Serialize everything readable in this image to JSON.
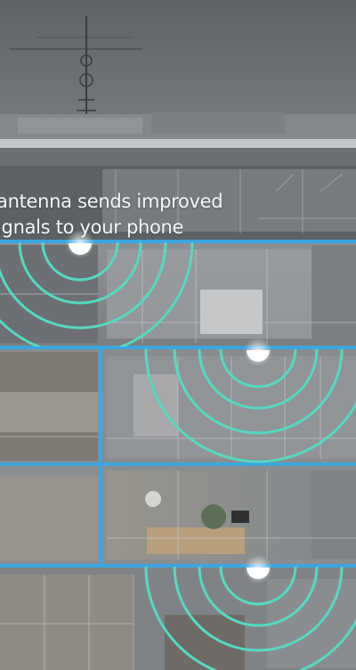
{
  "caption": {
    "line1": "antenna sends improved",
    "line2": "ignals to your phone"
  },
  "colors": {
    "sky": "#727579",
    "floor_line": "#3aa9e6",
    "signal_ring": "#58d8c0",
    "node_light": "#ffffff"
  },
  "icons": {
    "antenna": "rooftop-antenna-icon",
    "signal": "signal-wave-icon",
    "node": "ceiling-node-icon"
  }
}
